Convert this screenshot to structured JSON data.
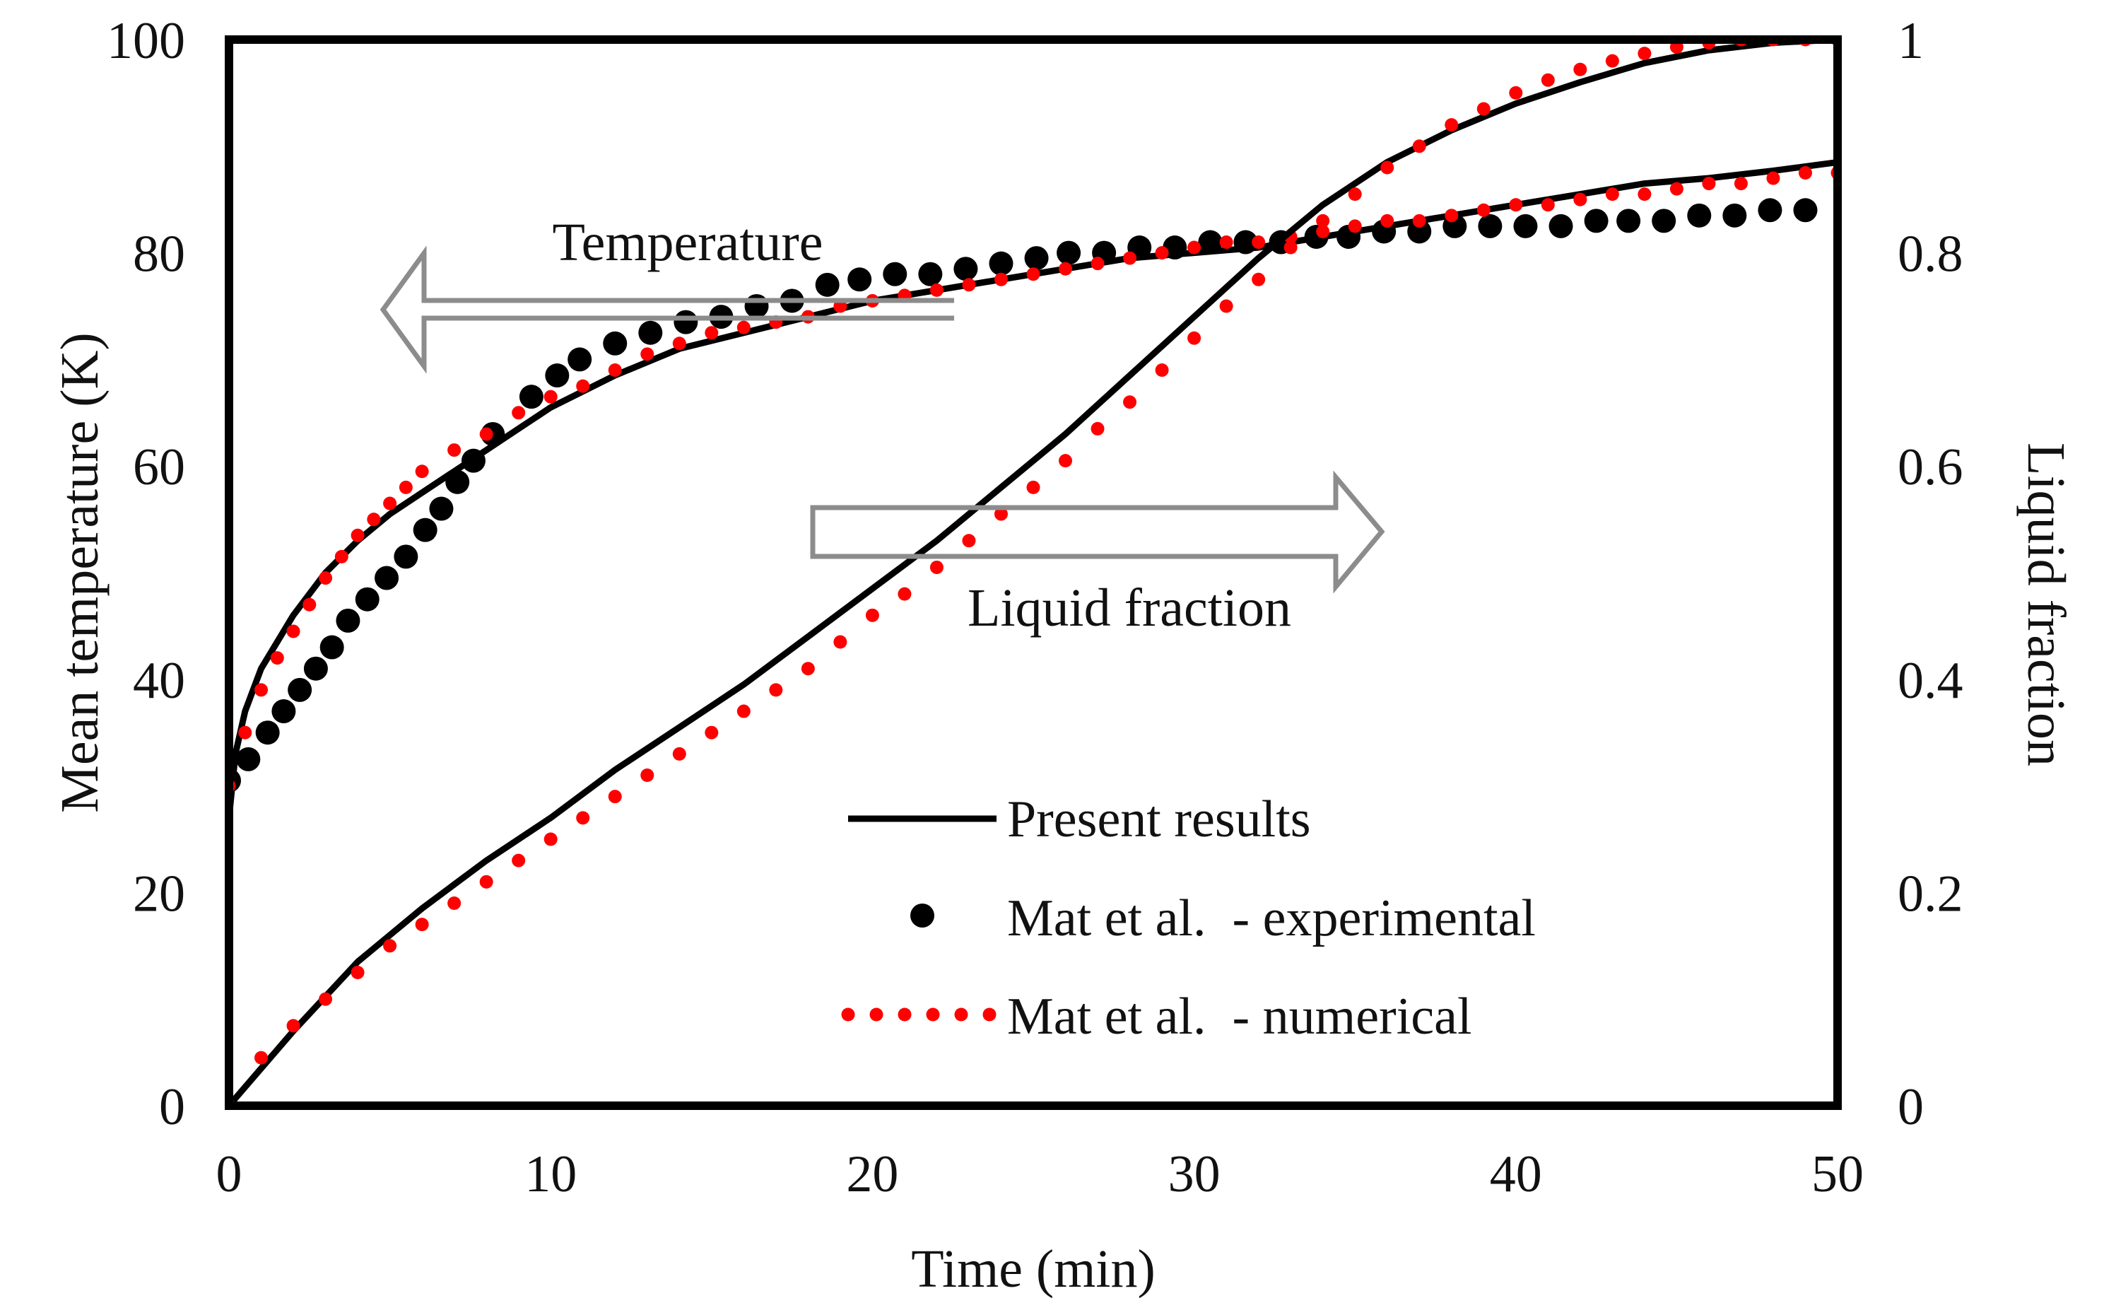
{
  "chart_data": {
    "type": "line",
    "title": "",
    "xlabel": "Time (min)",
    "ylabel": "Mean temperature (K)",
    "y2label": "Liquid fraction",
    "xlim": [
      0,
      50
    ],
    "ylim": [
      0,
      100
    ],
    "y2lim": [
      0,
      1
    ],
    "x_ticks": [
      "0",
      "10",
      "20",
      "30",
      "40",
      "50"
    ],
    "y_ticks": [
      "0",
      "20",
      "40",
      "60",
      "80",
      "100"
    ],
    "y2_ticks": [
      "0",
      "0.2",
      "0.4",
      "0.6",
      "0.8",
      "1"
    ],
    "grid": false,
    "legend_position": "bottom-center",
    "annotations": {
      "temperature": {
        "label": "Temperature",
        "points_to": "left axis"
      },
      "liquid_fraction": {
        "label": "Liquid fraction",
        "points_to": "right axis"
      }
    },
    "legend": [
      {
        "name": "Present results",
        "style": "solid-line",
        "color": "#000000",
        "text": "Present results"
      },
      {
        "name": "Mat et al. - experimental",
        "style": "black-dots",
        "color": "#000000",
        "text": "Mat et al.  - experimental"
      },
      {
        "name": "Mat et al. - numerical",
        "style": "red-dotted",
        "color": "#ff0000",
        "text": "Mat et al.  - numerical"
      }
    ],
    "series": [
      {
        "name": "Present results (temperature)",
        "axis": "left",
        "style": "solid",
        "color": "#000000",
        "x": [
          0,
          0.2,
          0.5,
          1,
          2,
          3,
          4,
          5,
          6,
          7,
          8,
          9,
          10,
          12,
          14,
          16,
          18,
          20,
          22,
          24,
          26,
          28,
          30,
          32,
          34,
          36,
          38,
          40,
          42,
          44,
          46,
          48,
          50
        ],
        "y": [
          27,
          33,
          37,
          41,
          46,
          50,
          53,
          55.5,
          57.5,
          59.5,
          61.5,
          63.5,
          65.5,
          68.5,
          71,
          72.5,
          74,
          75.5,
          76.5,
          77.5,
          78.5,
          79.5,
          80,
          80.5,
          81.5,
          82.5,
          83.5,
          84.5,
          85.5,
          86.5,
          87,
          87.7,
          88.5
        ]
      },
      {
        "name": "Mat et al. - experimental (temperature)",
        "axis": "left",
        "style": "dots",
        "color": "#000000",
        "x": [
          0,
          0.6,
          1.2,
          1.7,
          2.2,
          2.7,
          3.2,
          3.7,
          4.3,
          4.9,
          5.5,
          6.1,
          6.6,
          7.1,
          7.6,
          8.2,
          9.4,
          10.2,
          10.9,
          12,
          13.1,
          14.2,
          15.3,
          16.4,
          17.5,
          18.6,
          19.6,
          20.7,
          21.8,
          22.9,
          24,
          25.1,
          26.1,
          27.2,
          28.3,
          29.4,
          30.5,
          31.6,
          32.7,
          33.8,
          34.8,
          35.9,
          37,
          38.1,
          39.2,
          40.3,
          41.4,
          42.5,
          43.5,
          44.6,
          45.7,
          46.8,
          47.9,
          49
        ],
        "y": [
          30.5,
          32.5,
          35,
          37,
          39,
          41,
          43,
          45.5,
          47.5,
          49.5,
          51.5,
          54,
          56,
          58.5,
          60.5,
          63,
          66.5,
          68.5,
          70,
          71.5,
          72.5,
          73.5,
          74,
          75,
          75.5,
          77,
          77.5,
          78,
          78,
          78.5,
          79,
          79.5,
          80,
          80,
          80.5,
          80.5,
          81,
          81,
          81,
          81.5,
          81.5,
          82,
          82,
          82.5,
          82.5,
          82.5,
          82.5,
          83,
          83,
          83,
          83.5,
          83.5,
          84,
          84
        ]
      },
      {
        "name": "Mat et al. - numerical (temperature)",
        "axis": "left",
        "style": "dotted",
        "color": "#ff0000",
        "x": [
          0,
          0.5,
          1,
          1.5,
          2,
          2.5,
          3,
          3.5,
          4,
          4.5,
          5,
          5.5,
          6,
          7,
          8,
          9,
          10,
          11,
          12,
          13,
          14,
          15,
          16,
          17,
          18,
          19,
          20,
          21,
          22,
          23,
          24,
          25,
          26,
          27,
          28,
          29,
          30,
          31,
          32,
          33,
          34,
          35,
          36,
          37,
          38,
          39,
          40,
          41,
          42,
          43,
          44,
          45,
          46,
          47,
          48,
          49,
          50
        ],
        "y": [
          30,
          35,
          39,
          42,
          44.5,
          47,
          49.5,
          51.5,
          53.5,
          55,
          56.5,
          58,
          59.5,
          61.5,
          63,
          65,
          66.5,
          67.5,
          69,
          70.5,
          71.5,
          72.5,
          73,
          73.5,
          74,
          75,
          75.5,
          76,
          76.5,
          77,
          77.5,
          78,
          78.5,
          79,
          79.5,
          80,
          80.5,
          81,
          81,
          81.5,
          82,
          82.5,
          83,
          83,
          83.5,
          84,
          84.5,
          84.5,
          85,
          85.5,
          85.5,
          86,
          86.5,
          86.5,
          87,
          87.5,
          87.5
        ]
      },
      {
        "name": "Present results (liquid fraction)",
        "axis": "right",
        "style": "solid",
        "color": "#000000",
        "x": [
          0,
          2,
          4,
          6,
          8,
          10,
          12,
          14,
          16,
          18,
          20,
          22,
          24,
          26,
          28,
          30,
          32,
          34,
          36,
          38,
          40,
          42,
          44,
          46,
          48,
          50
        ],
        "y": [
          0,
          0.07,
          0.135,
          0.185,
          0.23,
          0.27,
          0.315,
          0.355,
          0.395,
          0.44,
          0.485,
          0.53,
          0.58,
          0.63,
          0.685,
          0.74,
          0.795,
          0.845,
          0.885,
          0.915,
          0.94,
          0.96,
          0.978,
          0.99,
          0.997,
          1
        ]
      },
      {
        "name": "Mat et al. - numerical (liquid fraction)",
        "axis": "right",
        "style": "dotted",
        "color": "#ff0000",
        "x": [
          0,
          1,
          2,
          3,
          4,
          5,
          6,
          7,
          8,
          9,
          10,
          11,
          12,
          13,
          14,
          15,
          16,
          17,
          18,
          19,
          20,
          21,
          22,
          23,
          24,
          25,
          26,
          27,
          28,
          29,
          30,
          31,
          32,
          33,
          34,
          35,
          36,
          37,
          38,
          39,
          40,
          41,
          42,
          43,
          44,
          45,
          46,
          47,
          48,
          49,
          50
        ],
        "y": [
          0,
          0.045,
          0.075,
          0.1,
          0.125,
          0.15,
          0.17,
          0.19,
          0.21,
          0.23,
          0.25,
          0.27,
          0.29,
          0.31,
          0.33,
          0.35,
          0.37,
          0.39,
          0.41,
          0.435,
          0.46,
          0.48,
          0.505,
          0.53,
          0.555,
          0.58,
          0.605,
          0.635,
          0.66,
          0.69,
          0.72,
          0.75,
          0.775,
          0.805,
          0.83,
          0.855,
          0.88,
          0.9,
          0.92,
          0.935,
          0.95,
          0.962,
          0.972,
          0.98,
          0.987,
          0.993,
          0.997,
          1,
          1,
          1,
          1
        ]
      }
    ]
  }
}
